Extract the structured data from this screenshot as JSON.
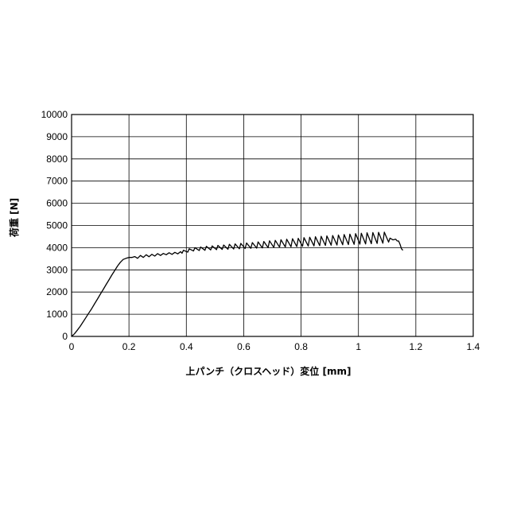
{
  "chart_data": {
    "type": "line",
    "title": "",
    "xlabel": "上パンチ（クロスヘッド）変位 [mm]",
    "ylabel": "荷重 [N]",
    "xlim": [
      0,
      1.4
    ],
    "ylim": [
      0,
      10000
    ],
    "x_ticks": [
      0,
      0.2,
      0.4,
      0.6,
      0.8,
      1,
      1.2,
      1.4
    ],
    "x_tick_labels": [
      "0",
      "0.2",
      "0.4",
      "0.6",
      "0.8",
      "1",
      "1.2",
      "1.4"
    ],
    "y_ticks": [
      0,
      1000,
      2000,
      3000,
      4000,
      5000,
      6000,
      7000,
      8000,
      9000,
      10000
    ],
    "y_tick_labels": [
      "0",
      "1000",
      "2000",
      "3000",
      "4000",
      "5000",
      "6000",
      "7000",
      "8000",
      "9000",
      "10000"
    ],
    "grid": true,
    "legend": "none",
    "line_color": "#000000",
    "series": [
      {
        "x": [
          0,
          0.01,
          0.02,
          0.03,
          0.04,
          0.05,
          0.06,
          0.07,
          0.08,
          0.09,
          0.1,
          0.11,
          0.12,
          0.13,
          0.14,
          0.15,
          0.16,
          0.17,
          0.18,
          0.19,
          0.2,
          0.21,
          0.22,
          0.23,
          0.24,
          0.25,
          0.26,
          0.27,
          0.28,
          0.29,
          0.3,
          0.31,
          0.32,
          0.33,
          0.34,
          0.35,
          0.36,
          0.37,
          0.38,
          0.385,
          0.39,
          0.405,
          0.41,
          0.425,
          0.43,
          0.445,
          0.45,
          0.465,
          0.47,
          0.485,
          0.49,
          0.505,
          0.51,
          0.525,
          0.53,
          0.545,
          0.55,
          0.565,
          0.57,
          0.585,
          0.59,
          0.605,
          0.61,
          0.625,
          0.63,
          0.645,
          0.65,
          0.665,
          0.67,
          0.685,
          0.69,
          0.705,
          0.71,
          0.725,
          0.73,
          0.745,
          0.75,
          0.765,
          0.77,
          0.785,
          0.79,
          0.805,
          0.81,
          0.825,
          0.83,
          0.845,
          0.85,
          0.865,
          0.87,
          0.885,
          0.89,
          0.905,
          0.91,
          0.925,
          0.93,
          0.945,
          0.95,
          0.965,
          0.97,
          0.985,
          0.99,
          1.005,
          1.01,
          1.025,
          1.03,
          1.045,
          1.05,
          1.065,
          1.07,
          1.085,
          1.09,
          1.105,
          1.11,
          1.12,
          1.13,
          1.135,
          1.14,
          1.145,
          1.15,
          1.155
        ],
        "y": [
          0,
          120,
          280,
          450,
          650,
          850,
          1050,
          1250,
          1470,
          1680,
          1900,
          2110,
          2330,
          2540,
          2760,
          2960,
          3170,
          3340,
          3470,
          3520,
          3560,
          3560,
          3600,
          3520,
          3650,
          3560,
          3680,
          3590,
          3700,
          3620,
          3730,
          3650,
          3740,
          3680,
          3770,
          3700,
          3790,
          3720,
          3820,
          3750,
          3880,
          3800,
          3950,
          3850,
          4000,
          3870,
          4030,
          3880,
          4060,
          3900,
          4080,
          3910,
          4100,
          3920,
          4120,
          3930,
          4150,
          3940,
          4170,
          3950,
          4190,
          3960,
          4210,
          3970,
          4230,
          3980,
          4260,
          3990,
          4280,
          4000,
          4310,
          4010,
          4330,
          4020,
          4360,
          4030,
          4380,
          4040,
          4400,
          4050,
          4420,
          4060,
          4450,
          4070,
          4470,
          4080,
          4490,
          4090,
          4510,
          4100,
          4530,
          4110,
          4550,
          4120,
          4570,
          4130,
          4590,
          4140,
          4610,
          4150,
          4630,
          4160,
          4650,
          4170,
          4670,
          4180,
          4680,
          4190,
          4690,
          4200,
          4700,
          4250,
          4430,
          4350,
          4380,
          4300,
          4300,
          4150,
          3950,
          3880
        ]
      }
    ]
  }
}
